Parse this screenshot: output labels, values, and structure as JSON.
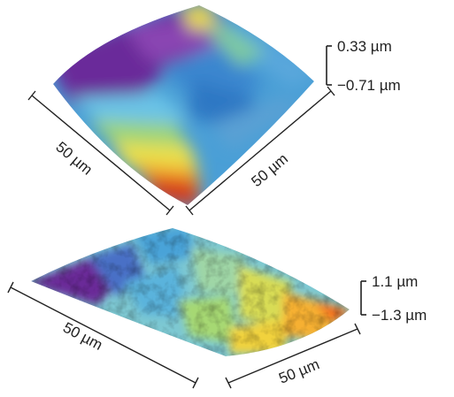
{
  "panels": [
    {
      "id": "top",
      "scale_max": "0.33 µm",
      "scale_min": "−0.71 µm",
      "edge_left": "50 µm",
      "edge_right": "50 µm",
      "colormap": [
        "#5a1f86",
        "#7b3aa8",
        "#5a6cc9",
        "#3a9fd8",
        "#6cc6e8",
        "#a8dc6a",
        "#f0e34a",
        "#f6a42b",
        "#d2381e"
      ]
    },
    {
      "id": "bottom",
      "scale_max": "1.1 µm",
      "scale_min": "−1.3 µm",
      "edge_left": "50 µm",
      "edge_right": "50 µm",
      "colormap": [
        "#6a2a98",
        "#7b3aa8",
        "#4a74c8",
        "#4aa9da",
        "#8fd0d6",
        "#a6d873",
        "#e9e04a",
        "#f6b030",
        "#f27a1e"
      ]
    }
  ]
}
